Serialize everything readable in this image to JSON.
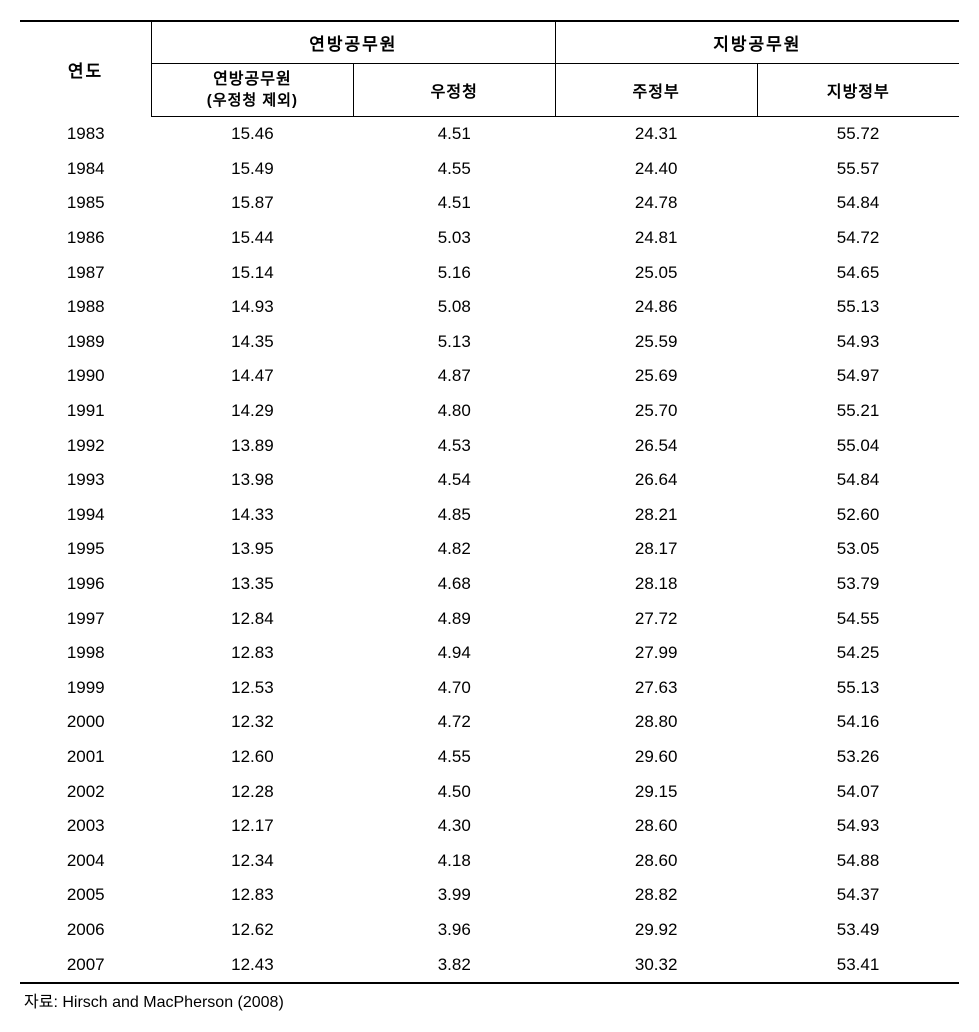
{
  "table": {
    "headers": {
      "year": "연도",
      "federal_group": "연방공무원",
      "local_group": "지방공무원",
      "federal_ex_postal": "연방공무원",
      "federal_ex_postal_sub": "(우정청 제외)",
      "postal": "우정청",
      "state": "주정부",
      "local": "지방정부"
    },
    "rows": [
      {
        "year": "1983",
        "fed": "15.46",
        "postal": "4.51",
        "state": "24.31",
        "local": "55.72"
      },
      {
        "year": "1984",
        "fed": "15.49",
        "postal": "4.55",
        "state": "24.40",
        "local": "55.57"
      },
      {
        "year": "1985",
        "fed": "15.87",
        "postal": "4.51",
        "state": "24.78",
        "local": "54.84"
      },
      {
        "year": "1986",
        "fed": "15.44",
        "postal": "5.03",
        "state": "24.81",
        "local": "54.72"
      },
      {
        "year": "1987",
        "fed": "15.14",
        "postal": "5.16",
        "state": "25.05",
        "local": "54.65"
      },
      {
        "year": "1988",
        "fed": "14.93",
        "postal": "5.08",
        "state": "24.86",
        "local": "55.13"
      },
      {
        "year": "1989",
        "fed": "14.35",
        "postal": "5.13",
        "state": "25.59",
        "local": "54.93"
      },
      {
        "year": "1990",
        "fed": "14.47",
        "postal": "4.87",
        "state": "25.69",
        "local": "54.97"
      },
      {
        "year": "1991",
        "fed": "14.29",
        "postal": "4.80",
        "state": "25.70",
        "local": "55.21"
      },
      {
        "year": "1992",
        "fed": "13.89",
        "postal": "4.53",
        "state": "26.54",
        "local": "55.04"
      },
      {
        "year": "1993",
        "fed": "13.98",
        "postal": "4.54",
        "state": "26.64",
        "local": "54.84"
      },
      {
        "year": "1994",
        "fed": "14.33",
        "postal": "4.85",
        "state": "28.21",
        "local": "52.60"
      },
      {
        "year": "1995",
        "fed": "13.95",
        "postal": "4.82",
        "state": "28.17",
        "local": "53.05"
      },
      {
        "year": "1996",
        "fed": "13.35",
        "postal": "4.68",
        "state": "28.18",
        "local": "53.79"
      },
      {
        "year": "1997",
        "fed": "12.84",
        "postal": "4.89",
        "state": "27.72",
        "local": "54.55"
      },
      {
        "year": "1998",
        "fed": "12.83",
        "postal": "4.94",
        "state": "27.99",
        "local": "54.25"
      },
      {
        "year": "1999",
        "fed": "12.53",
        "postal": "4.70",
        "state": "27.63",
        "local": "55.13"
      },
      {
        "year": "2000",
        "fed": "12.32",
        "postal": "4.72",
        "state": "28.80",
        "local": "54.16"
      },
      {
        "year": "2001",
        "fed": "12.60",
        "postal": "4.55",
        "state": "29.60",
        "local": "53.26"
      },
      {
        "year": "2002",
        "fed": "12.28",
        "postal": "4.50",
        "state": "29.15",
        "local": "54.07"
      },
      {
        "year": "2003",
        "fed": "12.17",
        "postal": "4.30",
        "state": "28.60",
        "local": "54.93"
      },
      {
        "year": "2004",
        "fed": "12.34",
        "postal": "4.18",
        "state": "28.60",
        "local": "54.88"
      },
      {
        "year": "2005",
        "fed": "12.83",
        "postal": "3.99",
        "state": "28.82",
        "local": "54.37"
      },
      {
        "year": "2006",
        "fed": "12.62",
        "postal": "3.96",
        "state": "29.92",
        "local": "53.49"
      },
      {
        "year": "2007",
        "fed": "12.43",
        "postal": "3.82",
        "state": "30.32",
        "local": "53.41"
      }
    ]
  },
  "source": {
    "label": "자료:",
    "text": "Hirsch and MacPherson (2008)"
  },
  "styling": {
    "border_color": "#000000",
    "background_color": "#ffffff",
    "font_family": "Malgun Gothic",
    "header_font_size": 17,
    "body_font_size": 17,
    "source_font_size": 16,
    "column_widths": [
      "14%",
      "21.5%",
      "21.5%",
      "21.5%",
      "21.5%"
    ],
    "row_line_height": 1.8,
    "border_top_width": 2,
    "border_divider_width": 1,
    "border_bottom_width": 2
  }
}
